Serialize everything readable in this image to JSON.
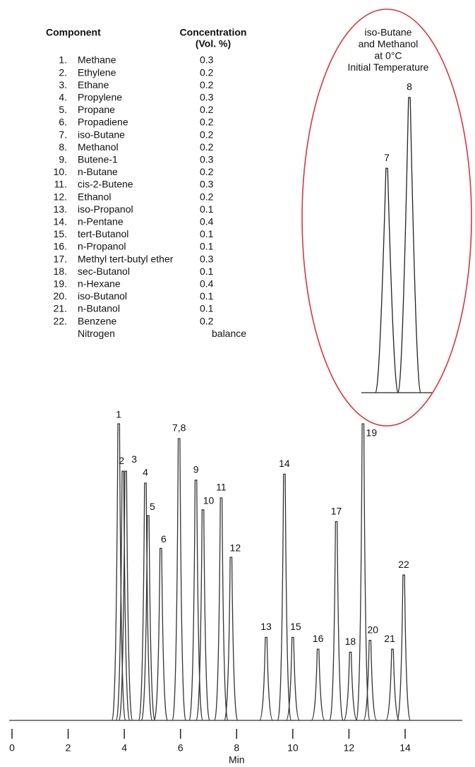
{
  "components": {
    "headers": [
      "Component",
      "Concentration",
      "(Vol. %)"
    ],
    "rows": [
      [
        "1.",
        "Methane",
        0.3
      ],
      [
        "2.",
        "Ethylene",
        0.2
      ],
      [
        "3.",
        "Ethane",
        0.2
      ],
      [
        "4.",
        "Propylene",
        0.3
      ],
      [
        "5.",
        "Propane",
        0.2
      ],
      [
        "6.",
        "Propadiene",
        0.2
      ],
      [
        "7.",
        "iso-Butane",
        0.2
      ],
      [
        "8.",
        "Methanol",
        0.2
      ],
      [
        "9.",
        "Butene-1",
        0.3
      ],
      [
        "10.",
        "n-Butane",
        0.2
      ],
      [
        "11.",
        "cis-2-Butene",
        0.3
      ],
      [
        "12.",
        "Ethanol",
        0.2
      ],
      [
        "13.",
        "iso-Propanol",
        0.1
      ],
      [
        "14.",
        "n-Pentane",
        0.4
      ],
      [
        "15.",
        "tert-Butanol",
        0.1
      ],
      [
        "16.",
        "n-Propanol",
        0.1
      ],
      [
        "17.",
        "Methyl tert-butyl ether",
        0.3
      ],
      [
        "18.",
        "sec-Butanol",
        0.1
      ],
      [
        "19.",
        "n-Hexane",
        0.4
      ],
      [
        "20.",
        "iso-Butanol",
        0.1
      ],
      [
        "21.",
        "n-Butanol",
        0.1
      ],
      [
        "22.",
        "Benzene",
        0.2
      ]
    ],
    "balance_row": [
      "Nitrogen",
      "balance"
    ]
  },
  "chart_data": [
    {
      "type": "peaks",
      "x_label": "Min",
      "peak_labels": [
        "1",
        "2",
        "3",
        "4",
        "5",
        "6",
        "7,8",
        "9",
        "10",
        "11",
        "12",
        "13",
        "14",
        "15",
        "16",
        "17",
        "18",
        "19",
        "20",
        "21",
        "22"
      ],
      "x": [
        3.8,
        3.95,
        4.05,
        4.75,
        4.85,
        5.3,
        5.95,
        6.55,
        6.8,
        7.45,
        7.8,
        9.05,
        9.7,
        10.0,
        10.9,
        11.55,
        12.05,
        12.5,
        12.75,
        13.55,
        13.95
      ],
      "values": [
        100,
        84,
        84,
        80,
        69,
        58,
        95,
        81,
        71,
        75,
        55,
        28,
        83,
        28,
        24,
        67,
        23,
        100,
        27,
        24,
        49
      ],
      "xlim": [
        -0.4,
        16
      ],
      "ylim": [
        0,
        100
      ],
      "xticks": [
        0,
        2,
        4,
        6,
        8,
        10,
        12,
        14
      ],
      "color": "#333333"
    },
    {
      "type": "inset-peaks",
      "title": [
        "iso-Butane",
        "and Methanol",
        "at 0°C",
        "Initial Temperature"
      ],
      "peak_labels": [
        "7",
        "8"
      ],
      "values": [
        76,
        100
      ],
      "ylim": [
        0,
        100
      ],
      "color": "#222222",
      "border_color": "#d9363e"
    }
  ]
}
